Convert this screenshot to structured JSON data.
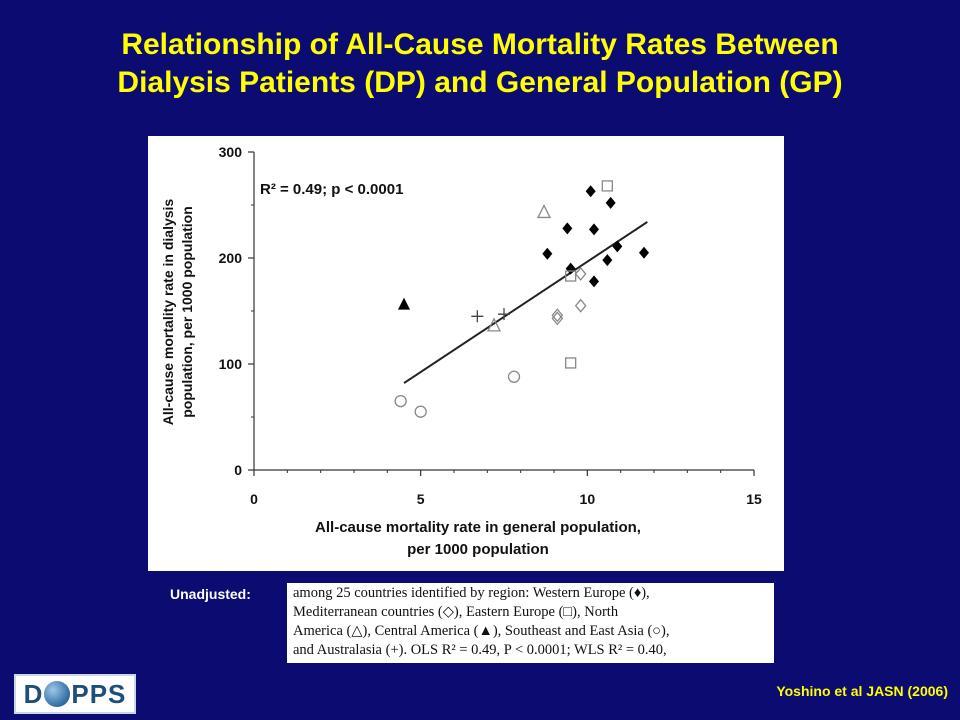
{
  "slide": {
    "title_line1": "Relationship of All-Cause Mortality Rates Between",
    "title_line2": "Dialysis Patients (DP) and General Population (GP)",
    "unadjusted_label": "Unadjusted:",
    "caption_lines": [
      "among 25 countries identified by region: Western Europe (♦),",
      "Mediterranean countries (◇), Eastern Europe (□), North",
      "America (△), Central America (▲), Southeast and East Asia (○),",
      "and Australasia (+). OLS R² = 0.49, P < 0.0001; WLS R² = 0.40,"
    ],
    "citation": "Yoshino et al JASN (2006)",
    "logo_left": "D",
    "logo_right": "PPS"
  },
  "colors": {
    "background": "#0b0b72",
    "title": "#ffff00",
    "citation": "#ffff00",
    "marker_filled": "#000000",
    "marker_open": "#888888",
    "regression_line": "#222222"
  },
  "chart_data": {
    "type": "scatter",
    "annotation": "R² = 0.49; p < 0.0001",
    "xlabel_line1": "All-cause mortality rate in general population,",
    "xlabel_line2": "per 1000 population",
    "ylabel_line1": "All-cause mortality rate in dialysis",
    "ylabel_line2": "population, per 1000 population",
    "xlim": [
      0,
      15
    ],
    "ylim": [
      0,
      300
    ],
    "xticks": [
      0,
      5,
      10,
      15
    ],
    "yticks": [
      0,
      100,
      200,
      300
    ],
    "grid": false,
    "series": [
      {
        "marker": "diamond-filled",
        "points": [
          [
            8.8,
            204
          ],
          [
            9.4,
            228
          ],
          [
            9.5,
            190
          ],
          [
            10.1,
            263
          ],
          [
            10.2,
            227
          ],
          [
            10.2,
            178
          ],
          [
            10.6,
            198
          ],
          [
            10.7,
            252
          ],
          [
            10.9,
            211
          ],
          [
            11.7,
            205
          ]
        ]
      },
      {
        "marker": "diamond-open",
        "points": [
          [
            9.1,
            146
          ],
          [
            9.1,
            143
          ],
          [
            9.8,
            185
          ],
          [
            9.8,
            155
          ]
        ]
      },
      {
        "marker": "square-open",
        "points": [
          [
            9.5,
            183
          ],
          [
            9.5,
            101
          ],
          [
            10.6,
            268
          ]
        ]
      },
      {
        "marker": "triangle-open",
        "points": [
          [
            7.2,
            136
          ],
          [
            8.7,
            243
          ]
        ]
      },
      {
        "marker": "triangle-filled",
        "points": [
          [
            4.5,
            156
          ]
        ]
      },
      {
        "marker": "circle-open",
        "points": [
          [
            4.4,
            65
          ],
          [
            5.0,
            55
          ],
          [
            7.8,
            88
          ]
        ]
      },
      {
        "marker": "plus",
        "points": [
          [
            6.7,
            145
          ],
          [
            7.5,
            147
          ]
        ]
      }
    ],
    "regression": {
      "x1": 4.5,
      "y1": 82,
      "x2": 11.8,
      "y2": 234
    }
  }
}
